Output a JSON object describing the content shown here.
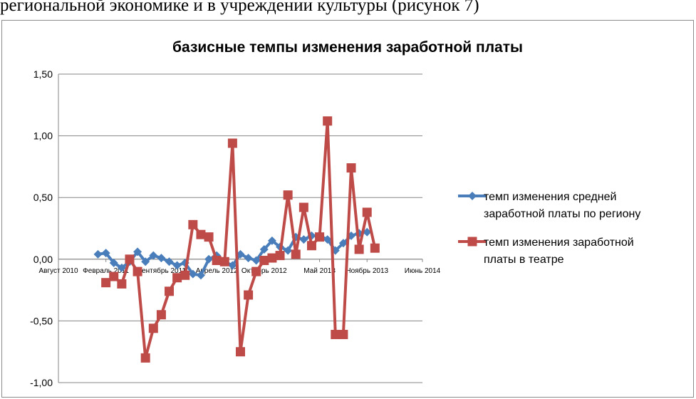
{
  "document": {
    "text_line": "региональной  экономике и в учреждении культуры (рисунок 7)"
  },
  "chart_data": {
    "type": "line",
    "title": "базисные темпы изменения заработной платы",
    "xlabel": "",
    "ylabel": "",
    "ylim": [
      -1.0,
      1.5
    ],
    "yticks": [
      1.5,
      1.0,
      0.5,
      0.0,
      -0.5,
      -1.0
    ],
    "ytick_labels": [
      "1,50",
      "1,00",
      "0,50",
      "0,00",
      "-0,50",
      "-1,00"
    ],
    "xlim": [
      "2010-08",
      "2014-06"
    ],
    "xticks": [
      "2010-08",
      "2011-02",
      "2011-09",
      "2012-04",
      "2012-10",
      "2013-05",
      "2013-11",
      "2014-06"
    ],
    "xtick_labels": [
      "Август 2010",
      "Февраль 2011",
      "Сентябрь 2011",
      "Апрель 2012",
      "Октябрь 2012",
      "Май 2013",
      "Ноябрь 2013",
      "Июнь 2014"
    ],
    "grid": true,
    "legend_position": "right",
    "series": [
      {
        "name": "темп изменения средней заработной платы по региону",
        "name_lines": [
          "темп изменения средней",
          "заработной платы по региону"
        ],
        "color": "#4a7ebb",
        "marker": "diamond",
        "x": [
          "2011-01",
          "2011-02",
          "2011-03",
          "2011-04",
          "2011-05",
          "2011-06",
          "2011-07",
          "2011-08",
          "2011-09",
          "2011-10",
          "2011-11",
          "2011-12",
          "2012-01",
          "2012-02",
          "2012-03",
          "2012-04",
          "2012-05",
          "2012-06",
          "2012-07",
          "2012-08",
          "2012-09",
          "2012-10",
          "2012-11",
          "2012-12",
          "2013-01",
          "2013-02",
          "2013-03",
          "2013-04",
          "2013-05",
          "2013-06",
          "2013-07",
          "2013-08",
          "2013-09",
          "2013-10",
          "2013-11"
        ],
        "values": [
          0.04,
          0.05,
          -0.03,
          -0.07,
          -0.02,
          0.06,
          -0.02,
          0.03,
          0.01,
          -0.02,
          -0.05,
          -0.03,
          -0.12,
          -0.13,
          0.0,
          0.03,
          -0.02,
          -0.05,
          0.04,
          0.01,
          -0.01,
          0.08,
          0.15,
          0.1,
          0.07,
          0.18,
          0.16,
          0.19,
          0.19,
          0.16,
          0.07,
          0.13,
          0.19,
          0.21,
          0.22
        ]
      },
      {
        "name": "темп изменения  заработной платы в театре",
        "name_lines": [
          "темп изменения  заработной",
          "платы в театре"
        ],
        "color": "#be4b48",
        "marker": "square",
        "x": [
          "2011-02",
          "2011-03",
          "2011-04",
          "2011-05",
          "2011-06",
          "2011-07",
          "2011-08",
          "2011-09",
          "2011-10",
          "2011-11",
          "2011-12",
          "2012-01",
          "2012-02",
          "2012-03",
          "2012-04",
          "2012-05",
          "2012-06",
          "2012-07",
          "2012-08",
          "2012-09",
          "2012-10",
          "2012-11",
          "2012-12",
          "2013-01",
          "2013-02",
          "2013-03",
          "2013-04",
          "2013-05",
          "2013-06",
          "2013-07",
          "2013-08",
          "2013-09",
          "2013-10",
          "2013-11",
          "2013-12"
        ],
        "values": [
          -0.19,
          -0.14,
          -0.2,
          0.0,
          -0.1,
          -0.8,
          -0.56,
          -0.45,
          -0.26,
          -0.15,
          -0.13,
          0.28,
          0.2,
          0.18,
          -0.01,
          -0.02,
          0.94,
          -0.75,
          -0.29,
          -0.1,
          -0.01,
          0.01,
          0.03,
          0.52,
          0.04,
          0.42,
          0.11,
          0.18,
          1.12,
          -0.61,
          -0.61,
          0.74,
          0.08,
          0.38,
          0.09
        ]
      }
    ]
  }
}
